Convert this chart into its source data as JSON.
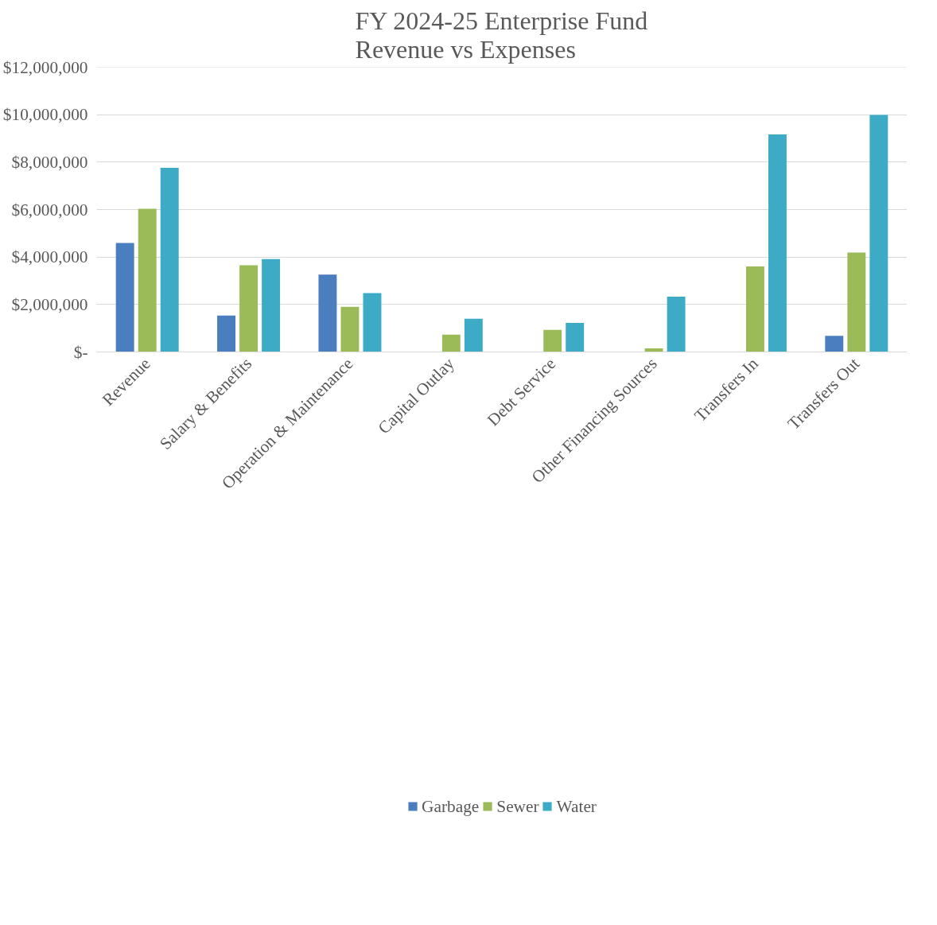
{
  "chart_data": {
    "type": "bar",
    "title": "FY 2024-25 Enterprise Fund\nRevenue vs Expenses",
    "categories": [
      "Revenue",
      "Salary & Benefits",
      "Operation & Maintenance",
      "Capital Outlay",
      "Debt Service",
      "Other Financing Sources",
      "Transfers In",
      "Transfers Out"
    ],
    "series": [
      {
        "name": "Garbage",
        "color": "#4a7ebf",
        "values": [
          4590000,
          1530000,
          3260000,
          null,
          null,
          null,
          null,
          680000
        ]
      },
      {
        "name": "Sewer",
        "color": "#9bbb59",
        "values": [
          6030000,
          3650000,
          1900000,
          730000,
          930000,
          150000,
          3600000,
          4190000
        ]
      },
      {
        "name": "Water",
        "color": "#3eabc6",
        "values": [
          7760000,
          3910000,
          2480000,
          1400000,
          1220000,
          2330000,
          9170000,
          9990000
        ]
      }
    ],
    "ylim": [
      0,
      12000000
    ],
    "yticks": [
      {
        "value": 0,
        "label": "$-"
      },
      {
        "value": 2000000,
        "label": "$2,000,000"
      },
      {
        "value": 4000000,
        "label": "$4,000,000"
      },
      {
        "value": 6000000,
        "label": "$6,000,000"
      },
      {
        "value": 8000000,
        "label": "$8,000,000"
      },
      {
        "value": 10000000,
        "label": "$10,000,000"
      },
      {
        "value": 12000000,
        "label": "$12,000,000"
      }
    ],
    "grid": "y",
    "legend": "bottom"
  }
}
